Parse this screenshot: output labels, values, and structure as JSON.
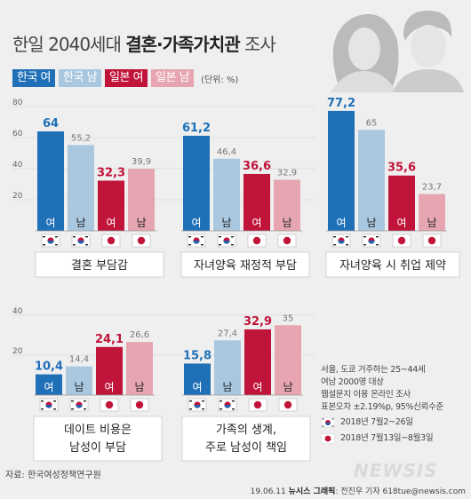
{
  "title": {
    "prefix": "한일 2040세대",
    "bold": "결혼·가족가치관",
    "suffix": "조사"
  },
  "legend": [
    {
      "label": "한국 여",
      "color": "#2070b8"
    },
    {
      "label": "한국 남",
      "color": "#a9c8e0"
    },
    {
      "label": "일본 여",
      "color": "#c0143a"
    },
    {
      "label": "일본 남",
      "color": "#e6a5b0"
    }
  ],
  "unit": "(단위: %)",
  "bar_gender_labels": [
    "여",
    "남",
    "여",
    "남"
  ],
  "chart_data": [
    {
      "type": "bar",
      "title": "결혼 부담감",
      "categories": [
        "한국 여",
        "한국 남",
        "일본 여",
        "일본 남"
      ],
      "values": [
        64,
        55.2,
        32.3,
        39.9
      ],
      "value_labels": [
        "64",
        "55,2",
        "32,3",
        "39,9"
      ],
      "yticks": [
        "80",
        "60",
        "40",
        "20"
      ],
      "ylim": [
        0,
        80
      ]
    },
    {
      "type": "bar",
      "title": "자녀양육 재정적 부담",
      "categories": [
        "한국 여",
        "한국 남",
        "일본 여",
        "일본 남"
      ],
      "values": [
        61.2,
        46.4,
        36.6,
        32.9
      ],
      "value_labels": [
        "61,2",
        "46,4",
        "36,6",
        "32,9"
      ],
      "ylim": [
        0,
        80
      ]
    },
    {
      "type": "bar",
      "title": "자녀양육 시 취업 제약",
      "categories": [
        "한국 여",
        "한국 남",
        "일본 여",
        "일본 남"
      ],
      "values": [
        77.2,
        65,
        35.6,
        23.7
      ],
      "value_labels": [
        "77,2",
        "65",
        "35,6",
        "23,7"
      ],
      "ylim": [
        0,
        80
      ]
    },
    {
      "type": "bar",
      "title": "데이트 비용은\n남성이 부담",
      "categories": [
        "한국 여",
        "한국 남",
        "일본 여",
        "일본 남"
      ],
      "values": [
        10.4,
        14.4,
        24.1,
        26.6
      ],
      "value_labels": [
        "10,4",
        "14,4",
        "24,1",
        "26,6"
      ],
      "yticks": [
        "40",
        "20"
      ],
      "ylim": [
        0,
        40
      ]
    },
    {
      "type": "bar",
      "title": "가족의 생계,\n주로 남성이 책임",
      "categories": [
        "한국 여",
        "한국 남",
        "일본 여",
        "일본 남"
      ],
      "values": [
        15.8,
        27.4,
        32.9,
        35
      ],
      "value_labels": [
        "15,8",
        "27,4",
        "32,9",
        "35"
      ],
      "ylim": [
        0,
        40
      ]
    }
  ],
  "note": {
    "lines": [
      "서울, 도쿄 거주하는 25~44세",
      "여남 2000명 대상",
      "웹설문지 이용 온라인 조사",
      "표본오차 ±2.19%p, 95%신뢰수준"
    ],
    "korea_period": "2018년 7월2~26일",
    "japan_period": "2018년 7월13일~8월3일"
  },
  "source": "자료: 한국여성정책연구원",
  "credit": {
    "date": "19.06.11",
    "agency": "뉴시스 그래픽",
    "author": "전진우 기자 618tue@newsis.com"
  },
  "watermark": "NEWSIS"
}
